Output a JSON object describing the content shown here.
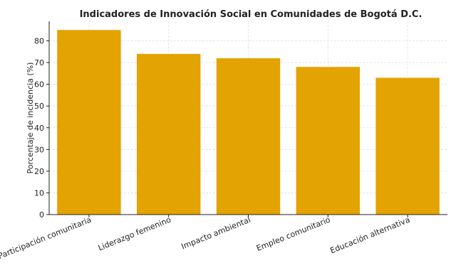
{
  "chart_data": {
    "type": "bar",
    "title": "Indicadores de Innovación Social en Comunidades de Bogotá D.C.",
    "xlabel": "",
    "ylabel": "Porcentaje de incidencia (%)",
    "categories": [
      "Participación comunitaria",
      "Liderazgo femenino",
      "Impacto ambiental",
      "Empleo comunitario",
      "Educación alternativa"
    ],
    "values": [
      85,
      74,
      72,
      68,
      63
    ],
    "ylim": [
      0,
      89
    ],
    "yticks": [
      0,
      10,
      20,
      30,
      40,
      50,
      60,
      70,
      80
    ],
    "grid": true,
    "bar_color": "#E3A302"
  }
}
